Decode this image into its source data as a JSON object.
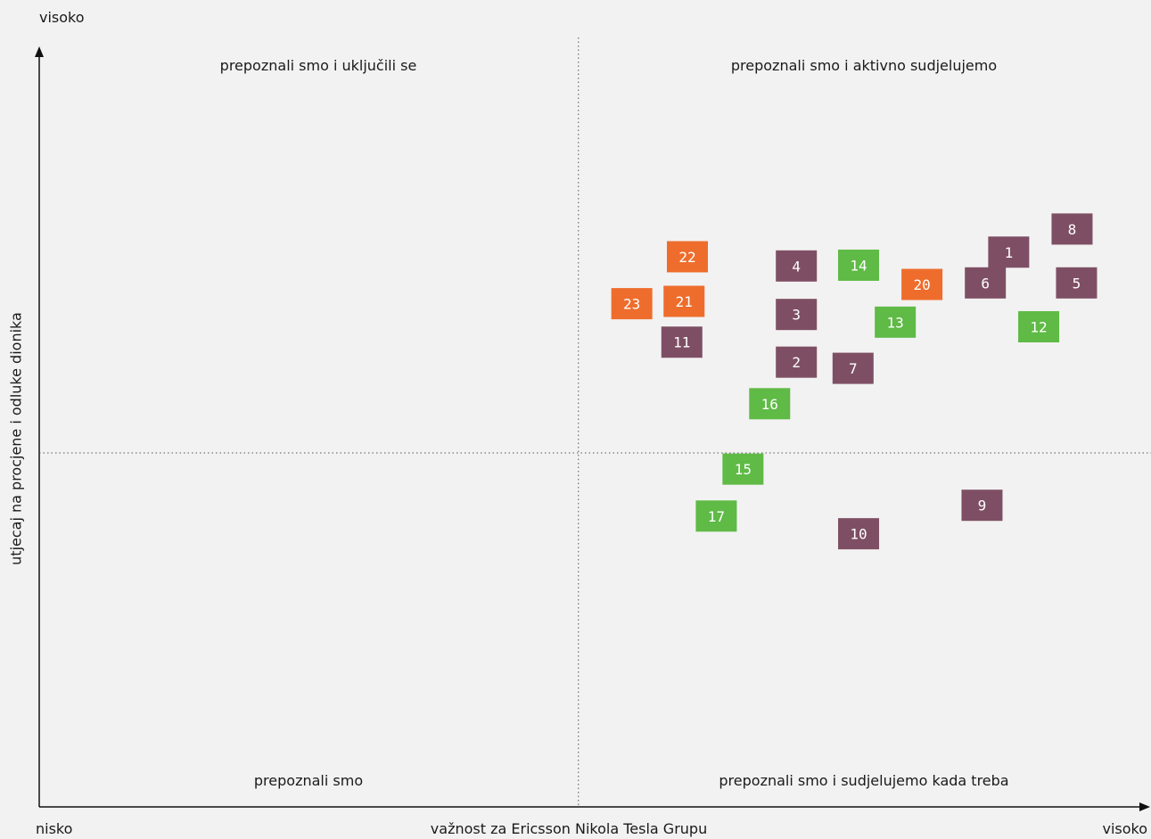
{
  "chart_data": {
    "type": "scatter",
    "title": "",
    "xlabel": "važnost za Ericsson Nikola Tesla Grupu",
    "ylabel": "utjecaj na procjene i odluke dionika",
    "x_low": "nisko",
    "x_high": "visoko",
    "y_high": "visoko",
    "quadrants": {
      "top_left": "prepoznali smo i uključili se",
      "top_right": "prepoznali smo i aktivno sudjelujemo",
      "bottom_left": "prepoznali smo",
      "bottom_right": "prepoznali smo i sudjelujemo kada treba"
    },
    "xlim": [
      0,
      100
    ],
    "ylim": [
      0,
      100
    ],
    "divider_x": 48.5,
    "divider_y": 46,
    "grid": false,
    "legend": "none",
    "colors": {
      "purple": "#7e4f64",
      "green": "#5fba46",
      "orange": "#ee6d2c"
    },
    "points": [
      {
        "label": "1",
        "x": 87.2,
        "y": 72.1,
        "group": "purple"
      },
      {
        "label": "2",
        "x": 68.1,
        "y": 57.8,
        "group": "purple"
      },
      {
        "label": "3",
        "x": 68.1,
        "y": 64.0,
        "group": "purple"
      },
      {
        "label": "4",
        "x": 68.1,
        "y": 70.3,
        "group": "purple"
      },
      {
        "label": "5",
        "x": 93.3,
        "y": 68.1,
        "group": "purple"
      },
      {
        "label": "6",
        "x": 85.1,
        "y": 68.1,
        "group": "purple"
      },
      {
        "label": "7",
        "x": 73.2,
        "y": 57.0,
        "group": "purple"
      },
      {
        "label": "8",
        "x": 92.9,
        "y": 75.1,
        "group": "purple"
      },
      {
        "label": "9",
        "x": 84.8,
        "y": 39.2,
        "group": "purple"
      },
      {
        "label": "10",
        "x": 73.7,
        "y": 35.5,
        "group": "purple"
      },
      {
        "label": "11",
        "x": 57.8,
        "y": 60.4,
        "group": "purple"
      },
      {
        "label": "12",
        "x": 89.9,
        "y": 62.4,
        "group": "green"
      },
      {
        "label": "13",
        "x": 77.0,
        "y": 63.0,
        "group": "green"
      },
      {
        "label": "14",
        "x": 73.7,
        "y": 70.4,
        "group": "green"
      },
      {
        "label": "15",
        "x": 63.3,
        "y": 43.9,
        "group": "green"
      },
      {
        "label": "16",
        "x": 65.7,
        "y": 52.4,
        "group": "green"
      },
      {
        "label": "17",
        "x": 60.9,
        "y": 37.8,
        "group": "green"
      },
      {
        "label": "20",
        "x": 79.4,
        "y": 67.9,
        "group": "orange"
      },
      {
        "label": "21",
        "x": 58.0,
        "y": 65.7,
        "group": "orange"
      },
      {
        "label": "22",
        "x": 58.3,
        "y": 71.5,
        "group": "orange"
      },
      {
        "label": "23",
        "x": 53.3,
        "y": 65.4,
        "group": "orange"
      }
    ]
  }
}
